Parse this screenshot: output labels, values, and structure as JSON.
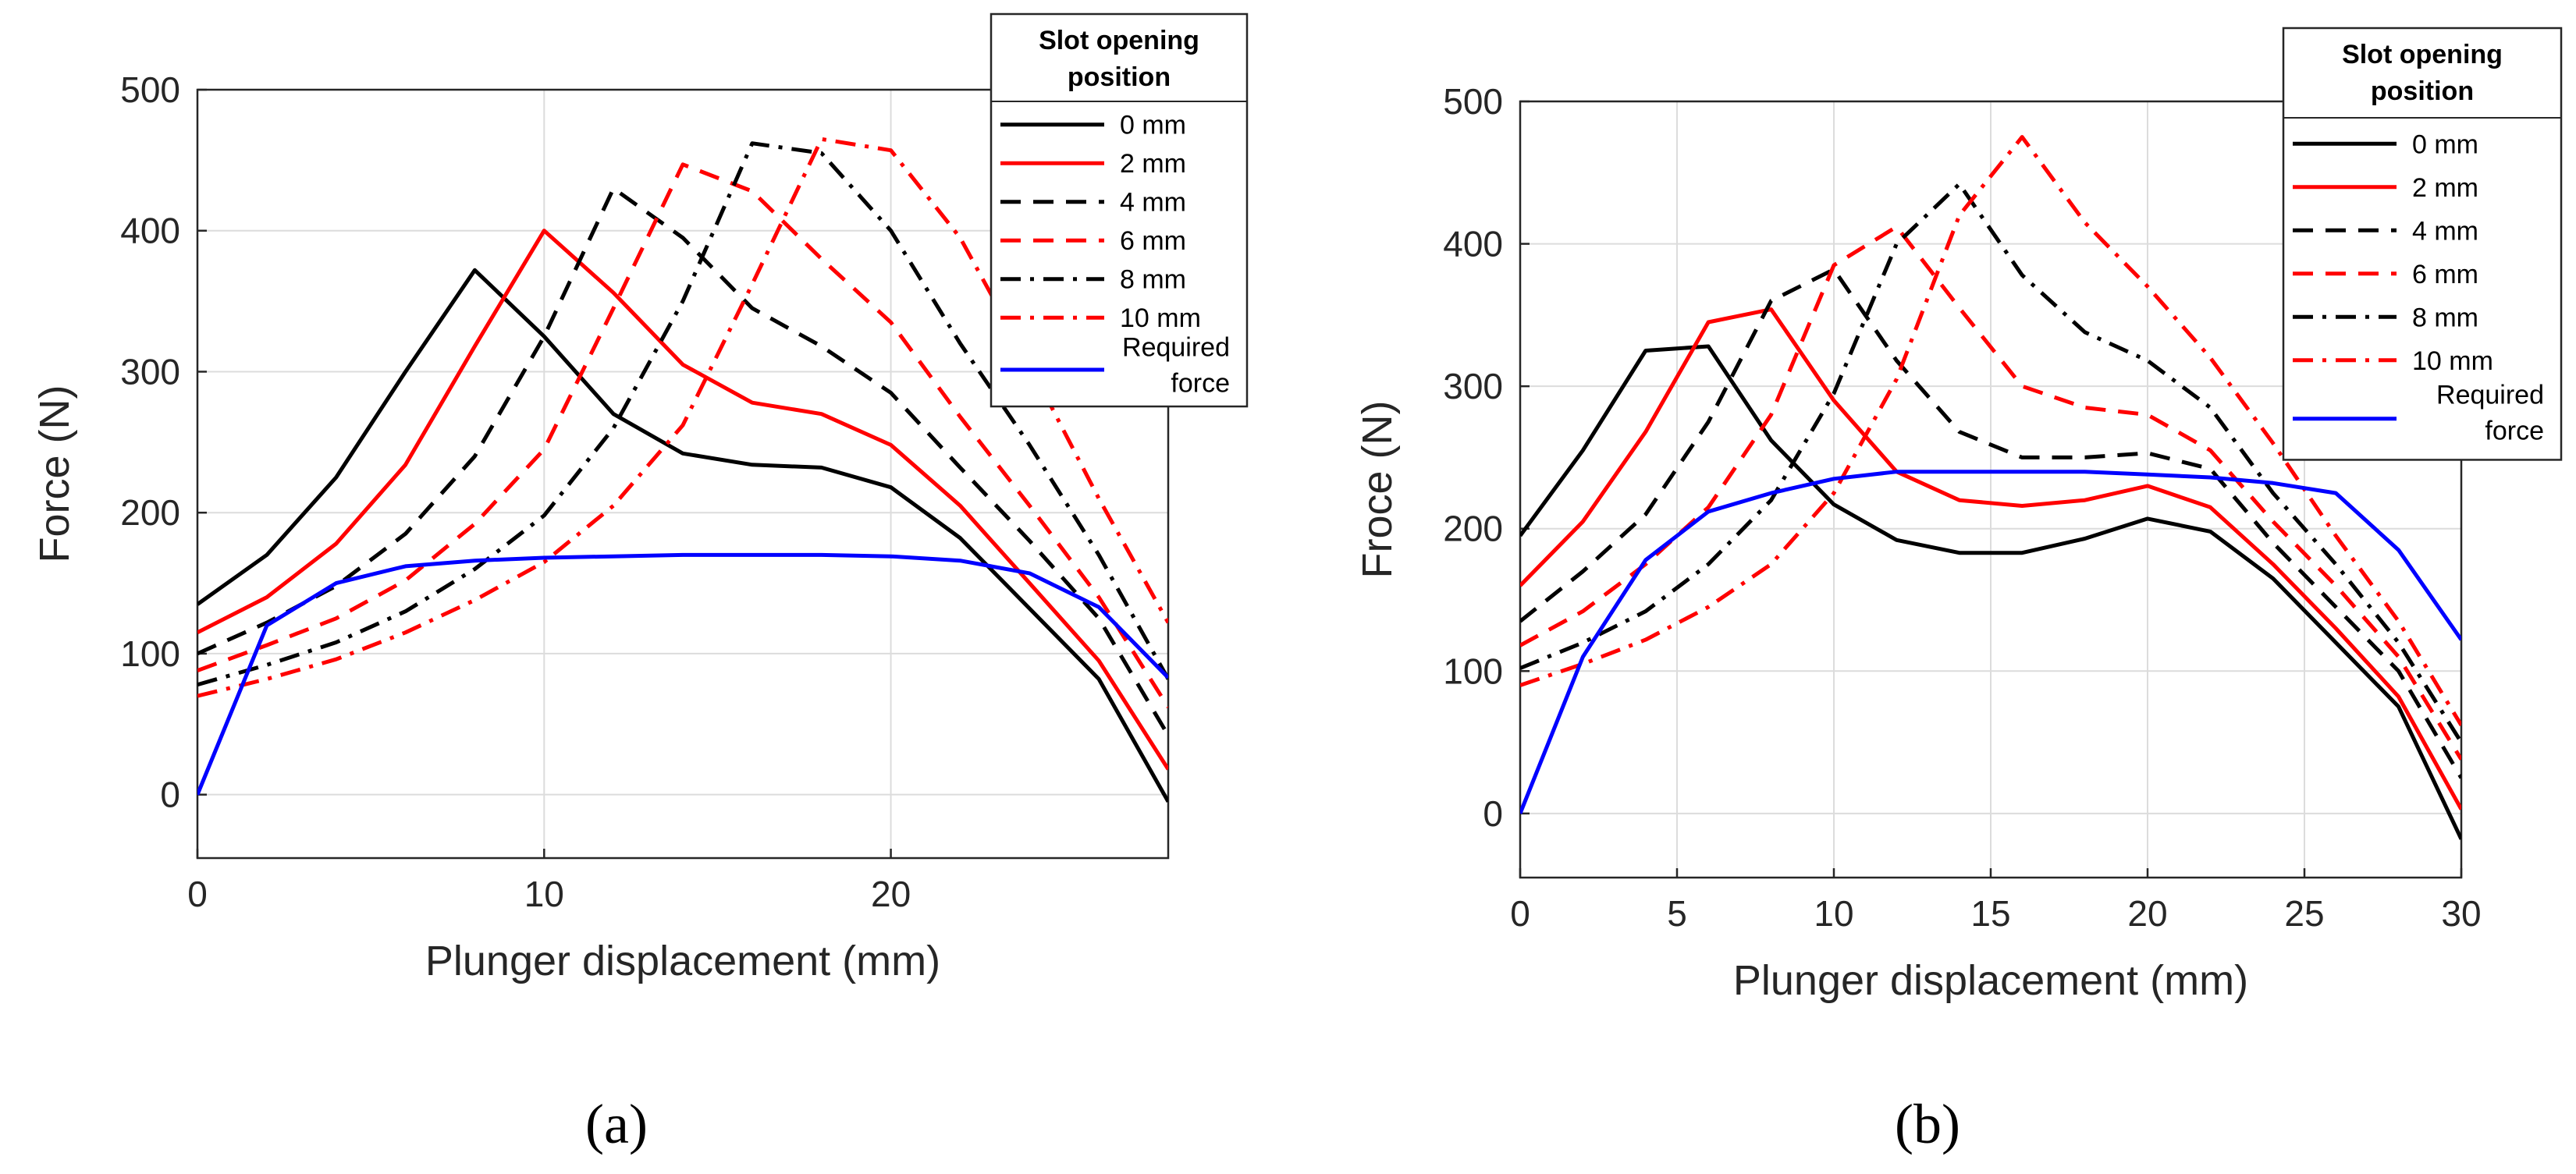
{
  "chart_data": [
    {
      "type": "line",
      "panel_label": "(a)",
      "xlabel": "Plunger displacement (mm)",
      "ylabel": "Force (N)",
      "xlim": [
        0,
        28
      ],
      "ylim": [
        -45,
        500
      ],
      "xticks": [
        0,
        10,
        20
      ],
      "yticks": [
        0,
        100,
        200,
        300,
        400,
        500
      ],
      "grid": true,
      "legend": {
        "title_lines": [
          "Slot opening",
          "position"
        ],
        "placement": "top-right"
      },
      "x": [
        0,
        2,
        4,
        6,
        8,
        10,
        12,
        14,
        16,
        18,
        20,
        22,
        24,
        26,
        28
      ],
      "series": [
        {
          "name": "0 mm",
          "color": "#000000",
          "dash": "solid",
          "values": [
            135,
            170,
            225,
            300,
            372,
            325,
            270,
            242,
            234,
            232,
            218,
            182,
            132,
            82,
            -5
          ]
        },
        {
          "name": "2 mm",
          "color": "#ff0000",
          "dash": "solid",
          "values": [
            115,
            140,
            178,
            234,
            318,
            400,
            356,
            305,
            278,
            270,
            248,
            205,
            150,
            95,
            18
          ]
        },
        {
          "name": "4 mm",
          "color": "#000000",
          "dash": "dashed",
          "values": [
            100,
            122,
            148,
            185,
            240,
            325,
            430,
            395,
            345,
            318,
            285,
            232,
            180,
            125,
            42
          ]
        },
        {
          "name": "6 mm",
          "color": "#ff0000",
          "dash": "dashed",
          "values": [
            88,
            106,
            125,
            152,
            192,
            245,
            345,
            447,
            428,
            380,
            335,
            268,
            205,
            140,
            62
          ]
        },
        {
          "name": "8 mm",
          "color": "#000000",
          "dash": "dashdot",
          "values": [
            78,
            92,
            108,
            130,
            160,
            198,
            260,
            350,
            462,
            455,
            400,
            320,
            248,
            170,
            82
          ]
        },
        {
          "name": "10 mm",
          "color": "#ff0000",
          "dash": "dashdot",
          "values": [
            70,
            82,
            96,
            115,
            138,
            165,
            205,
            262,
            362,
            465,
            457,
            395,
            305,
            210,
            122
          ]
        },
        {
          "name": "Required force",
          "legend_lines": [
            "Required",
            "force"
          ],
          "color": "#0000ff",
          "dash": "solid",
          "values": [
            0,
            120,
            150,
            162,
            166,
            168,
            169,
            170,
            170,
            170,
            169,
            166,
            157,
            133,
            83
          ]
        }
      ]
    },
    {
      "type": "line",
      "panel_label": "(b)",
      "xlabel": "Plunger displacement (mm)",
      "ylabel": "Froce (N)",
      "xlim": [
        0,
        30
      ],
      "ylim": [
        -45,
        500
      ],
      "xticks": [
        0,
        5,
        10,
        15,
        20,
        25,
        30
      ],
      "yticks": [
        0,
        100,
        200,
        300,
        400,
        500
      ],
      "grid": true,
      "legend": {
        "title_lines": [
          "Slot opening",
          "position"
        ],
        "placement": "top-right"
      },
      "x": [
        0,
        2,
        4,
        6,
        8,
        10,
        12,
        14,
        16,
        18,
        20,
        22,
        24,
        26,
        28,
        30
      ],
      "series": [
        {
          "name": "0 mm",
          "color": "#000000",
          "dash": "solid",
          "values": [
            195,
            255,
            325,
            328,
            262,
            217,
            192,
            183,
            183,
            193,
            207,
            198,
            165,
            120,
            75,
            -18
          ]
        },
        {
          "name": "2 mm",
          "color": "#ff0000",
          "dash": "solid",
          "values": [
            160,
            205,
            268,
            345,
            354,
            290,
            240,
            220,
            216,
            220,
            230,
            215,
            175,
            130,
            82,
            3
          ]
        },
        {
          "name": "4 mm",
          "color": "#000000",
          "dash": "dashed",
          "values": [
            135,
            170,
            210,
            275,
            360,
            382,
            318,
            268,
            250,
            250,
            253,
            242,
            190,
            145,
            100,
            25
          ]
        },
        {
          "name": "6 mm",
          "color": "#ff0000",
          "dash": "dashed",
          "values": [
            118,
            142,
            175,
            215,
            280,
            385,
            412,
            355,
            300,
            285,
            280,
            255,
            205,
            160,
            110,
            38
          ]
        },
        {
          "name": "8 mm",
          "color": "#000000",
          "dash": "dashdot",
          "values": [
            102,
            120,
            142,
            175,
            220,
            295,
            400,
            442,
            378,
            338,
            318,
            285,
            225,
            175,
            120,
            50
          ]
        },
        {
          "name": "10 mm",
          "color": "#ff0000",
          "dash": "dashdot",
          "values": [
            90,
            105,
            122,
            145,
            175,
            225,
            305,
            420,
            475,
            415,
            370,
            320,
            260,
            195,
            135,
            62
          ]
        },
        {
          "name": "Required force",
          "legend_lines": [
            "Required",
            "force"
          ],
          "color": "#0000ff",
          "dash": "solid",
          "values": [
            0,
            110,
            178,
            212,
            225,
            235,
            240,
            240,
            240,
            240,
            238,
            236,
            232,
            225,
            185,
            122
          ]
        }
      ]
    }
  ]
}
